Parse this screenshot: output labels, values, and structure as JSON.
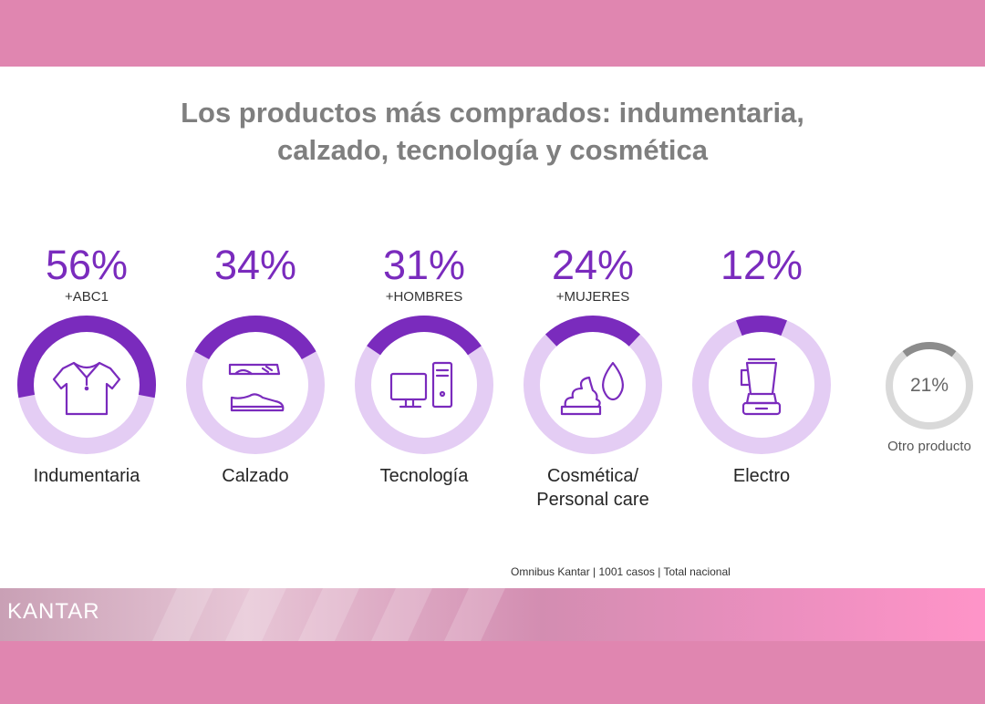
{
  "title": {
    "line1": "Los productos más comprados: indumentaria,",
    "line2": "calzado, tecnología y cosmética"
  },
  "colors": {
    "accent": "#7a2bbd",
    "ring_fill": "#7a2bbd",
    "ring_track": "#e4cdf4",
    "other_fill": "#8c8c8c",
    "other_track": "#d9d9d9"
  },
  "chart_data": {
    "type": "donut",
    "unit": "%",
    "series": [
      {
        "label": "Indumentaria",
        "value": 56,
        "display": "56%",
        "tag": "+ABC1",
        "icon": "shirt-icon"
      },
      {
        "label": "Calzado",
        "value": 34,
        "display": "34%",
        "tag": "",
        "icon": "shoes-icon"
      },
      {
        "label": "Tecnología",
        "value": 31,
        "display": "31%",
        "tag": "+HOMBRES",
        "icon": "computer-icon"
      },
      {
        "label": "Cosmética/\nPersonal care",
        "value": 24,
        "display": "24%",
        "tag": "+MUJERES",
        "icon": "cosmetics-icon"
      },
      {
        "label": "Electro",
        "value": 12,
        "display": "12%",
        "tag": "",
        "icon": "blender-icon"
      }
    ],
    "other": {
      "label": "Otro producto",
      "value": 21,
      "display": "21%"
    }
  },
  "source": "Omnibus Kantar | 1001 casos | Total nacional",
  "brand": "KANTAR"
}
